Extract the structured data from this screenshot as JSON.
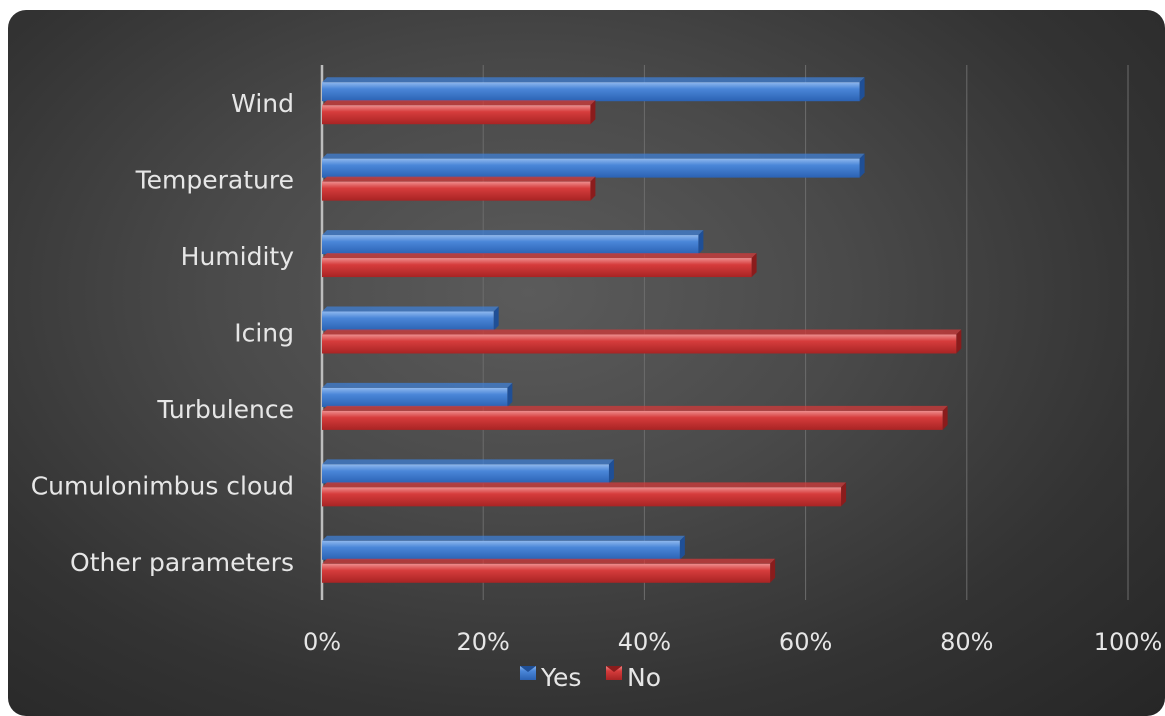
{
  "chart_data": {
    "type": "bar",
    "orientation": "horizontal",
    "categories": [
      "Wind",
      "Temperature",
      "Humidity",
      "Icing",
      "Turbulence",
      "Cumulonimbus cloud",
      "Other parameters"
    ],
    "series": [
      {
        "name": "Yes",
        "color": "#3f7fd4",
        "values": [
          66.7,
          66.7,
          46.7,
          21.3,
          23.0,
          35.6,
          44.4
        ]
      },
      {
        "name": "No",
        "color": "#d23a3a",
        "values": [
          33.3,
          33.3,
          53.3,
          78.7,
          77.0,
          64.4,
          55.6
        ]
      }
    ],
    "xlim": [
      0,
      100
    ],
    "xticks": [
      "0%",
      "20%",
      "40%",
      "60%",
      "80%",
      "100%"
    ],
    "grid": true,
    "legend": "bottom"
  }
}
